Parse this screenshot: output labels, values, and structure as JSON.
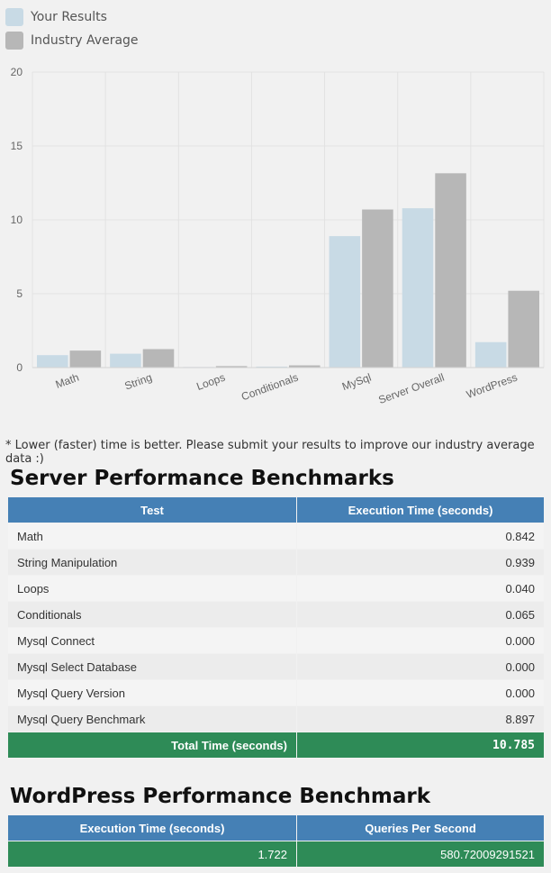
{
  "legend": [
    {
      "label": "Your Results",
      "color": "#c8dae5"
    },
    {
      "label": "Industry Average",
      "color": "#b7b7b7"
    }
  ],
  "chart_data": {
    "type": "bar",
    "categories": [
      "Math",
      "String",
      "Loops",
      "Conditionals",
      "MySql",
      "Server Overall",
      "WordPress"
    ],
    "series": [
      {
        "name": "Your Results",
        "color": "#c8dae5",
        "values": [
          0.842,
          0.939,
          0.04,
          0.065,
          8.897,
          10.785,
          1.722
        ]
      },
      {
        "name": "Industry Average",
        "color": "#b7b7b7",
        "values": [
          1.15,
          1.25,
          0.1,
          0.15,
          10.7,
          13.15,
          5.2
        ]
      }
    ],
    "yticks": [
      0,
      5,
      10,
      15,
      20
    ],
    "ylim": [
      0,
      20
    ],
    "grid": true,
    "legend_position": "top-left"
  },
  "note": "* Lower (faster) time is better. Please submit your results to improve our industry average data :)",
  "server": {
    "title": "Server Performance Benchmarks",
    "headers": [
      "Test",
      "Execution Time (seconds)"
    ],
    "rows": [
      [
        "Math",
        "0.842"
      ],
      [
        "String Manipulation",
        "0.939"
      ],
      [
        "Loops",
        "0.040"
      ],
      [
        "Conditionals",
        "0.065"
      ],
      [
        "Mysql Connect",
        "0.000"
      ],
      [
        "Mysql Select Database",
        "0.000"
      ],
      [
        "Mysql Query Version",
        "0.000"
      ],
      [
        "Mysql Query Benchmark",
        "8.897"
      ]
    ],
    "total_label": "Total Time (seconds)",
    "total_value": "10.785"
  },
  "wordpress": {
    "title": "WordPress Performance Benchmark",
    "headers": [
      "Execution Time (seconds)",
      "Queries Per Second"
    ],
    "values": [
      "1.722",
      "580.72009291521"
    ]
  }
}
